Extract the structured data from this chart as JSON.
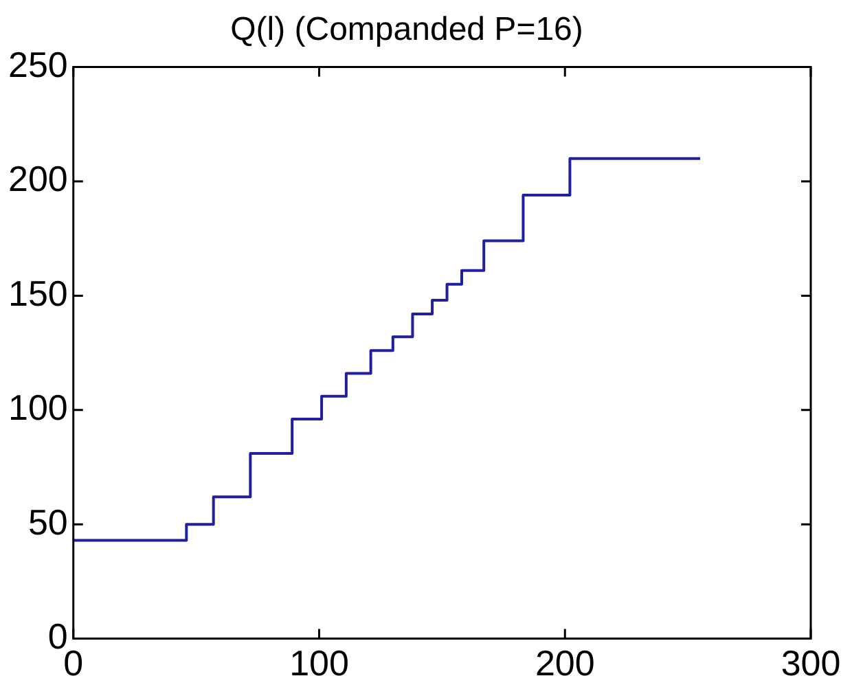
{
  "chart_data": {
    "type": "step",
    "title": "Q(l) (Companded P=16)",
    "x": [
      0,
      46,
      57,
      72,
      89,
      101,
      111,
      121,
      130,
      138,
      146,
      152,
      158,
      167,
      183,
      202,
      255
    ],
    "series": [
      {
        "color": "#1f1f9f",
        "values": [
          43,
          50,
          62,
          81,
          96,
          106,
          116,
          126,
          132,
          142,
          148,
          155,
          161,
          174,
          194,
          210,
          210
        ]
      }
    ],
    "xlim": [
      0,
      300
    ],
    "xticks": [
      0,
      100,
      200,
      300
    ],
    "ylim": [
      0,
      250
    ],
    "yticks": [
      0,
      50,
      100,
      150,
      200,
      250
    ],
    "grid": false,
    "legend": false
  }
}
